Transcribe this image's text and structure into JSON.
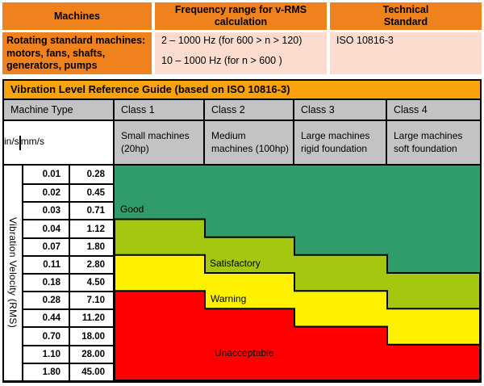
{
  "top_table": {
    "headers": [
      "Machines",
      "Frequency range for v-RMS calculation",
      "Technical Standard"
    ],
    "row": {
      "machines": "Rotating standard machines: motors, fans, shafts, generators, pumps",
      "frequency_lines": [
        "2 – 1000 Hz (for 600 > n > 120)",
        "10 – 1000 Hz (for n > 600 )"
      ],
      "standard": "ISO 10816-3"
    }
  },
  "guide_table": {
    "machine_type_label": "Machine Type",
    "classes": [
      {
        "label": "Class 1",
        "description": "Small machines (20hp)"
      },
      {
        "label": "Class 2",
        "description": "Medium machines (100hp)"
      },
      {
        "label": "Class 3",
        "description": "Large machines rigid foundation"
      },
      {
        "label": "Class 4",
        "description": "Large machines soft foundation"
      }
    ]
  },
  "chart_data": {
    "type": "heatmap",
    "title": "Vibration Level Reference Guide (based on ISO 10816-3)",
    "x_categories": [
      "Class 1",
      "Class 2",
      "Class 3",
      "Class 4"
    ],
    "y_axis_label": "Vibration Velocity (RMS)",
    "y_units": [
      "in/s",
      "mm/s"
    ],
    "y_in_s": [
      "0.01",
      "0.02",
      "0.03",
      "0.04",
      "0.07",
      "0.11",
      "0.18",
      "0.28",
      "0.44",
      "0.70",
      "1.10",
      "1.80"
    ],
    "y_mm_s": [
      "0.28",
      "0.45",
      "0.71",
      "1.12",
      "1.80",
      "2.80",
      "4.50",
      "7.10",
      "11.20",
      "18.00",
      "28.00",
      "45.00"
    ],
    "zones": [
      {
        "label": "Good",
        "color": "#2F9C6A",
        "row_range_per_class": [
          [
            1,
            3
          ],
          [
            1,
            4
          ],
          [
            1,
            5
          ],
          [
            1,
            6
          ]
        ]
      },
      {
        "label": "Satisfactory",
        "color": "#A3C80F",
        "row_range_per_class": [
          [
            4,
            5
          ],
          [
            5,
            6
          ],
          [
            6,
            7
          ],
          [
            7,
            8
          ]
        ]
      },
      {
        "label": "Warning",
        "color": "#FFF100",
        "row_range_per_class": [
          [
            6,
            7
          ],
          [
            7,
            8
          ],
          [
            8,
            9
          ],
          [
            9,
            10
          ]
        ]
      },
      {
        "label": "Unacceptable",
        "color": "#FE0000",
        "row_range_per_class": [
          [
            8,
            12
          ],
          [
            9,
            12
          ],
          [
            10,
            12
          ],
          [
            11,
            12
          ]
        ]
      }
    ],
    "legend_position": "in-plot",
    "grid": false
  },
  "colors": {
    "header_orange": "#F0821E",
    "banner_orange": "#FBA30B",
    "pale_pink": "#FBDCCE",
    "header_gray": "#C3C3C3",
    "border_black": "#000000"
  }
}
